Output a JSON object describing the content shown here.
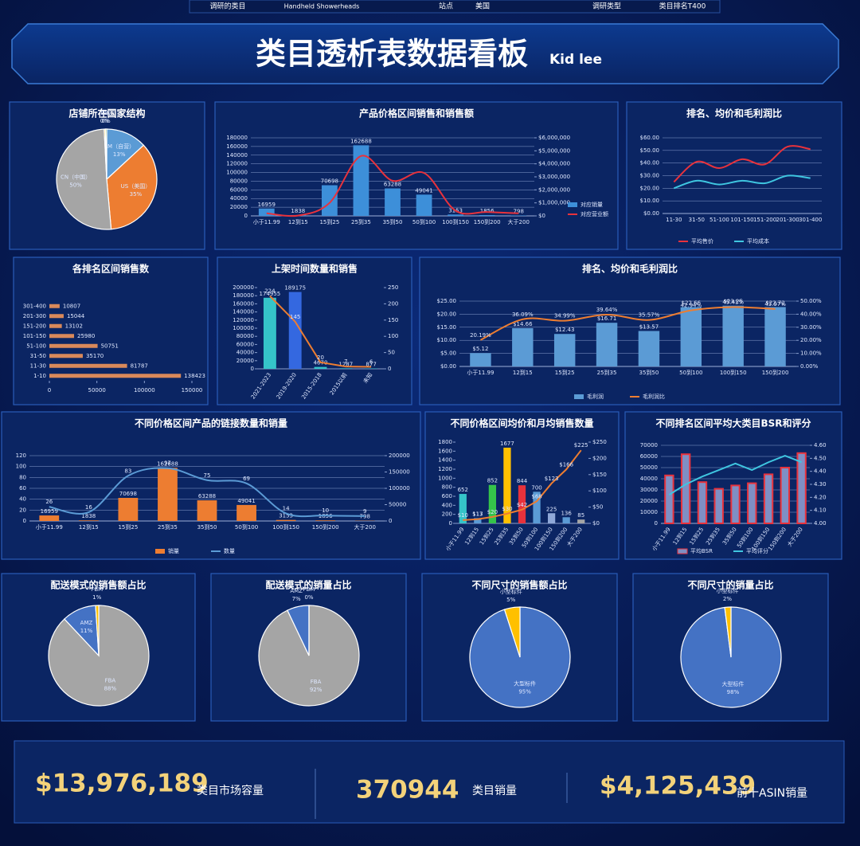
{
  "top_bar": [
    "调研的类目",
    "Handheld Showerheads",
    "站点",
    "美国",
    "调研类型",
    "类目排名T400"
  ],
  "header": {
    "title": "类目透析表数据看板",
    "author": "Kid lee"
  },
  "chart_data": [
    {
      "type": "pie",
      "title": "店铺所在国家结构",
      "categories": [
        "AM（自营）",
        "US（美国）",
        "CN（中国）",
        "DE",
        "CA"
      ],
      "values": [
        13,
        35,
        50,
        0.4,
        0.4
      ],
      "value_labels": [
        "13%",
        "35%",
        "50%",
        "0%",
        "0%"
      ],
      "colors": [
        "#5b9bd5",
        "#ed7d31",
        "#a5a5a5",
        "#ffc000",
        "#70ad47"
      ]
    },
    {
      "type": "bar",
      "title": "产品价格区间销售和销售额",
      "categories": [
        "小于11.99",
        "12到15",
        "15到25",
        "25到35",
        "35到50",
        "50到100",
        "100到150",
        "150到200",
        "大于200"
      ],
      "series": [
        {
          "name": "对应销量",
          "type": "bar",
          "color": "#3d8fd9",
          "data_labels": true,
          "values": [
            16959,
            1838,
            70698,
            162688,
            63288,
            49041,
            3153,
            1856,
            798
          ]
        },
        {
          "name": "对应营业额",
          "type": "line",
          "axis": "y2",
          "color": "#e8323c",
          "smooth": true,
          "values": [
            200000,
            25000,
            1000000,
            4600000,
            2700000,
            3300000,
            400000,
            300000,
            200000
          ]
        }
      ],
      "ylim": [
        0,
        180000
      ],
      "yticks": [
        0,
        20000,
        40000,
        60000,
        80000,
        100000,
        120000,
        140000,
        160000,
        180000
      ],
      "y2lim": [
        0,
        6000000
      ],
      "y2ticks": [
        {
          "value": 0,
          "label": "$0"
        },
        {
          "value": 1000000,
          "label": "$1,000,000"
        },
        {
          "value": 2000000,
          "label": "$2,000,000"
        },
        {
          "value": 3000000,
          "label": "$3,000,000"
        },
        {
          "value": 4000000,
          "label": "$4,000,000"
        },
        {
          "value": 5000000,
          "label": "$5,000,000"
        },
        {
          "value": 6000000,
          "label": "$6,000,000"
        }
      ],
      "grid": true,
      "legend": "right"
    },
    {
      "type": "line",
      "title": "排名、均价和毛利润比",
      "categories": [
        "11-30",
        "31-50",
        "51-100",
        "101-150",
        "151-200",
        "201-300",
        "301-400"
      ],
      "series": [
        {
          "name": "平均售价",
          "color": "#e8323c",
          "smooth": true,
          "values": [
            25,
            41,
            36,
            43,
            39,
            53,
            51
          ]
        },
        {
          "name": "平均成本",
          "color": "#3fc6e0",
          "smooth": true,
          "values": [
            20,
            26,
            23,
            26,
            24,
            30,
            28
          ]
        }
      ],
      "ylim": [
        0,
        60
      ],
      "yticks": [
        {
          "value": 0,
          "label": "$0.00"
        },
        {
          "value": 10,
          "label": "$10.00"
        },
        {
          "value": 20,
          "label": "$20.00"
        },
        {
          "value": 30,
          "label": "$30.00"
        },
        {
          "value": 40,
          "label": "$40.00"
        },
        {
          "value": 50,
          "label": "$50.00"
        },
        {
          "value": 60,
          "label": "$60.00"
        }
      ],
      "grid": true,
      "legend": "bottom"
    },
    {
      "type": "barh",
      "title": "各排名区间销售数",
      "categories": [
        "1-10",
        "11-30",
        "31-50",
        "51-100",
        "101-150",
        "151-200",
        "201-300",
        "301-400"
      ],
      "values": [
        138423,
        81787,
        35170,
        50751,
        25980,
        13102,
        15044,
        10807
      ],
      "color": "#d9895a",
      "xlim": [
        0,
        150000
      ],
      "xticks": [
        0,
        50000,
        100000,
        150000
      ],
      "data_labels": true
    },
    {
      "type": "bar",
      "title": "上架时间数量和销售",
      "categories": [
        "2021-2023",
        "2019-2020",
        "2015-2018",
        "2015以前",
        "未知"
      ],
      "series": [
        {
          "type": "bar",
          "colors": [
            "#35c4c9",
            "#3468e0",
            "#35c4c9",
            "#35c4c9",
            "#35c4c9"
          ],
          "data_labels": true,
          "values": [
            174955,
            189175,
            4670,
            1287,
            877
          ]
        },
        {
          "type": "line",
          "axis": "y2",
          "color": "#ed7d31",
          "data_labels": true,
          "values": [
            224,
            145,
            20,
            7,
            6
          ]
        }
      ],
      "ylim": [
        0,
        200000
      ],
      "yticks": [
        0,
        20000,
        40000,
        60000,
        80000,
        100000,
        120000,
        140000,
        160000,
        180000,
        200000
      ],
      "y2lim": [
        0,
        250
      ],
      "y2ticks": [
        0,
        50,
        100,
        150,
        200,
        250
      ],
      "grid": false
    },
    {
      "type": "bar",
      "title": "排名、均价和毛利润比",
      "categories": [
        "小于11.99",
        "12到15",
        "15到25",
        "25到35",
        "35到50",
        "50到100",
        "100到150",
        "150到200"
      ],
      "series": [
        {
          "name": "毛利润",
          "type": "bar",
          "color": "#5b9bd5",
          "data_labels": true,
          "values": [
            5.12,
            14.66,
            12.43,
            16.71,
            13.57,
            22.66,
            23.25,
            22.72
          ],
          "value_labels": [
            "$5.12",
            "$14.66",
            "$12.43",
            "$16.71",
            "$13.57",
            "$22.66",
            "$23.25",
            "$22.72"
          ]
        },
        {
          "name": "毛利润比",
          "type": "line",
          "axis": "y2",
          "color": "#ed7d31",
          "smooth": true,
          "data_labels": true,
          "values": [
            20.19,
            36.09,
            34.99,
            39.64,
            35.57,
            42.94,
            45.41,
            43.97
          ],
          "value_labels": [
            "20.19%",
            "36.09%",
            "34.99%",
            "39.64%",
            "35.57%",
            "42.94%",
            "45.41%",
            "43.97%"
          ]
        }
      ],
      "ylim": [
        0,
        25
      ],
      "yticks": [
        {
          "value": 0,
          "label": "$0.00"
        },
        {
          "value": 5,
          "label": "$5.00"
        },
        {
          "value": 10,
          "label": "$10.00"
        },
        {
          "value": 15,
          "label": "$15.00"
        },
        {
          "value": 20,
          "label": "$20.00"
        },
        {
          "value": 25,
          "label": "$25.00"
        }
      ],
      "y2lim": [
        0,
        50
      ],
      "y2ticks": [
        {
          "value": 0,
          "label": "0.00%"
        },
        {
          "value": 10,
          "label": "10.00%"
        },
        {
          "value": 20,
          "label": "20.00%"
        },
        {
          "value": 30,
          "label": "30.00%"
        },
        {
          "value": 40,
          "label": "40.00%"
        },
        {
          "value": 50,
          "label": "50.00%"
        }
      ],
      "grid": true,
      "legend": "bottom"
    },
    {
      "type": "bar",
      "title": "不同价格区间产品的链接数量和销量",
      "categories": [
        "小于11.99",
        "12到15",
        "15到25",
        "25到35",
        "35到50",
        "50到100",
        "100到150",
        "150到200",
        "大于200"
      ],
      "series": [
        {
          "name": "销量",
          "type": "bar",
          "axis": "y2",
          "color": "#ed7d31",
          "data_labels": true,
          "values": [
            16959,
            1838,
            70698,
            162688,
            63288,
            49041,
            3153,
            1856,
            798
          ]
        },
        {
          "name": "数量",
          "type": "line",
          "color": "#5b9bd5",
          "smooth": true,
          "data_labels": true,
          "values": [
            26,
            16,
            83,
            97,
            75,
            69,
            14,
            10,
            9
          ]
        }
      ],
      "ylim": [
        0,
        120
      ],
      "yticks": [
        0,
        20,
        40,
        60,
        80,
        100,
        120
      ],
      "y2lim": [
        0,
        200000
      ],
      "y2ticks": [
        0,
        50000,
        100000,
        150000,
        200000
      ],
      "grid": true,
      "legend": "bottom"
    },
    {
      "type": "bar",
      "title": "不同价格区间均价和月均销售数量",
      "categories": [
        "小于11.99",
        "12到15",
        "15到25",
        "25到35",
        "35到50",
        "50到100",
        "100到150",
        "150到200",
        "大于200"
      ],
      "series": [
        {
          "type": "bar",
          "colors": [
            "#35c4c9",
            "#5b9bd5",
            "#35c44a",
            "#ffc000",
            "#e8323c",
            "#5b9bd5",
            "#8fa8d8",
            "#5b9bd5",
            "#a5a5a5"
          ],
          "data_labels": true,
          "values": [
            652,
            117,
            852,
            1677,
            844,
            700,
            225,
            136,
            85
          ]
        },
        {
          "type": "line",
          "axis": "y2",
          "color": "#ed7d31",
          "data_labels": true,
          "values": [
            10,
            13,
            20,
            30,
            42,
            68,
            123,
            166,
            225
          ],
          "value_labels": [
            "$10",
            "$13",
            "$20",
            "$30",
            "$42",
            "$68",
            "$123",
            "$166",
            "$225"
          ]
        }
      ],
      "ylim": [
        0,
        1800
      ],
      "yticks": [
        0,
        200,
        400,
        600,
        800,
        1000,
        1200,
        1400,
        1600,
        1800
      ],
      "y2lim": [
        0,
        250
      ],
      "y2ticks": [
        {
          "value": 0,
          "label": "$0"
        },
        {
          "value": 50,
          "label": "$50"
        },
        {
          "value": 100,
          "label": "$100"
        },
        {
          "value": 150,
          "label": "$150"
        },
        {
          "value": 200,
          "label": "$200"
        },
        {
          "value": 250,
          "label": "$250"
        }
      ],
      "grid": false
    },
    {
      "type": "bar",
      "title": "不同排名区间平均大类目BSR和评分",
      "categories": [
        "小于11.99",
        "12到15",
        "15到25",
        "25到35",
        "35到50",
        "50到100",
        "100到150",
        "150到200",
        "大于200"
      ],
      "series": [
        {
          "name": "平均BSR",
          "type": "bar",
          "color": "#7f8fc4",
          "edgecolor": "#e8323c",
          "values": [
            43000,
            62000,
            37000,
            31000,
            34000,
            36000,
            44000,
            50000,
            63000
          ]
        },
        {
          "name": "平均评分",
          "type": "line",
          "axis": "y2",
          "color": "#3fc6e0",
          "values": [
            4.22,
            4.3,
            4.36,
            4.41,
            4.46,
            4.41,
            4.47,
            4.52,
            4.47
          ]
        }
      ],
      "ylim": [
        0,
        70000
      ],
      "yticks": [
        0,
        10000,
        20000,
        30000,
        40000,
        50000,
        60000,
        70000
      ],
      "y2lim": [
        4,
        4.6
      ],
      "y2ticks": [
        {
          "value": 4,
          "label": "4.00"
        },
        {
          "value": 4.1,
          "label": "4.10"
        },
        {
          "value": 4.2,
          "label": "4.20"
        },
        {
          "value": 4.3,
          "label": "4.30"
        },
        {
          "value": 4.4,
          "label": "4.40"
        },
        {
          "value": 4.5,
          "label": "4.50"
        },
        {
          "value": 4.6,
          "label": "4.60"
        }
      ],
      "grid": true,
      "legend": "bottom"
    },
    {
      "type": "pie",
      "title": "配送模式的销售额占比",
      "categories": [
        "FBA",
        "AMZ",
        "FBM"
      ],
      "values": [
        88,
        11,
        1
      ],
      "value_labels": [
        "88%",
        "11%",
        "1%"
      ],
      "colors": [
        "#a5a5a5",
        "#4472c4",
        "#ffc000"
      ]
    },
    {
      "type": "pie",
      "title": "配送模式的销量占比",
      "categories": [
        "FBA",
        "AMZ",
        "FBM"
      ],
      "values": [
        92,
        7,
        0
      ],
      "value_labels": [
        "92%",
        "7%",
        "0%"
      ],
      "colors": [
        "#a5a5a5",
        "#4472c4",
        "#ffc000"
      ]
    },
    {
      "type": "pie",
      "title": "不同尺寸的销售额占比",
      "categories": [
        "大型标件",
        "小型标件"
      ],
      "values": [
        95,
        5
      ],
      "value_labels": [
        "95%",
        "5%"
      ],
      "colors": [
        "#4472c4",
        "#ffc000"
      ]
    },
    {
      "type": "pie",
      "title": "不同尺寸的销量占比",
      "categories": [
        "大型标件",
        "小型标件"
      ],
      "values": [
        98,
        2
      ],
      "value_labels": [
        "98%",
        "2%"
      ],
      "colors": [
        "#4472c4",
        "#ffc000"
      ]
    }
  ],
  "kpis": [
    {
      "value": "$13,976,189",
      "label": "类目市场容量"
    },
    {
      "value": "370944",
      "label": "类目销量"
    },
    {
      "value": "$4,125,439",
      "label": "前十ASIN销量"
    }
  ]
}
